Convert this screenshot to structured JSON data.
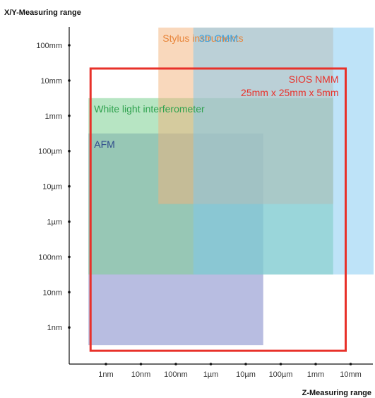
{
  "chart_data": {
    "type": "area",
    "y_axis_title": "X/Y-Measuring range",
    "x_axis_title": "Z-Measuring range",
    "x_ticks": [
      "1nm",
      "10nm",
      "100nm",
      "1µm",
      "10µm",
      "100µm",
      "1mm",
      "10mm"
    ],
    "y_ticks": [
      "100mm",
      "10mm",
      "1mm",
      "100µm",
      "10µm",
      "1µm",
      "100nm",
      "10nm",
      "1nm"
    ],
    "regions": [
      {
        "name": "AFM",
        "z_range": [
          "1nm",
          "10µm"
        ],
        "xy_range": [
          "1nm",
          "100µm"
        ],
        "fill": "#7d86c8",
        "label_color": "#2e4a8c",
        "fill_opacity": 0.55
      },
      {
        "name": "White light interferometer",
        "z_range": [
          "1nm",
          "1mm"
        ],
        "xy_range": [
          "100nm",
          "1mm"
        ],
        "fill": "#7ccf92",
        "label_color": "#2fa24e",
        "fill_opacity": 0.55
      },
      {
        "name": "Stylus instruments",
        "z_range": [
          "100nm",
          "1mm"
        ],
        "xy_range": [
          "10µm",
          "100mm"
        ],
        "fill": "#f3b27a",
        "label_color": "#e8853a",
        "fill_opacity": 0.5
      },
      {
        "name": "3D CMM",
        "z_range": [
          "1µm",
          "10mm"
        ],
        "xy_range": [
          "100nm",
          "100mm"
        ],
        "fill": "#7ec8f2",
        "label_color": "#3fa3df",
        "fill_opacity": 0.5
      }
    ],
    "highlight": {
      "name": "SIOS NMM",
      "detail": "25mm x 25mm x 5mm",
      "z_range": [
        "1nm",
        "10mm"
      ],
      "xy_range": [
        "1nm",
        "10mm"
      ],
      "stroke": "#e8312a"
    },
    "colors": {
      "axis": "#111111",
      "tick_text": "#333333"
    }
  }
}
